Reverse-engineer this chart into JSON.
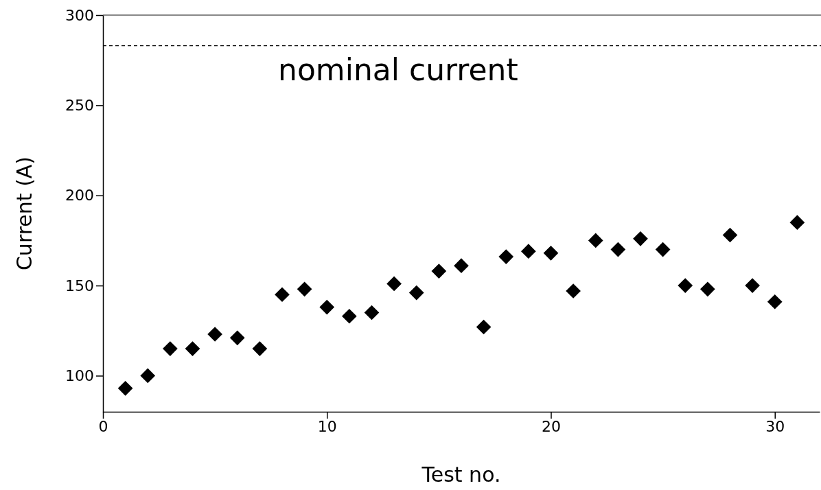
{
  "chart_data": {
    "type": "scatter",
    "xlabel": "Test no.",
    "ylabel": "Current (A)",
    "x": [
      1,
      2,
      3,
      4,
      5,
      6,
      7,
      8,
      9,
      10,
      11,
      12,
      13,
      14,
      15,
      16,
      17,
      18,
      19,
      20,
      21,
      22,
      23,
      24,
      25,
      26,
      27,
      28,
      29,
      30,
      31
    ],
    "values": [
      93,
      100,
      115,
      115,
      123,
      121,
      115,
      145,
      148,
      138,
      133,
      135,
      151,
      146,
      158,
      161,
      127,
      166,
      169,
      168,
      147,
      175,
      170,
      176,
      170,
      150,
      148,
      178,
      150,
      141,
      185
    ],
    "color": "#000000",
    "marker": "diamond",
    "xlim": [
      0,
      32
    ],
    "xticks": [
      0,
      10,
      20,
      30
    ],
    "ylim": [
      80,
      300
    ],
    "yticks": [
      100,
      150,
      200,
      250,
      300
    ],
    "ref_lines": [
      {
        "axis": "y",
        "value": 283,
        "label": "nominal current",
        "color": "#000000",
        "line_style": "dashed"
      }
    ],
    "grid": false
  }
}
